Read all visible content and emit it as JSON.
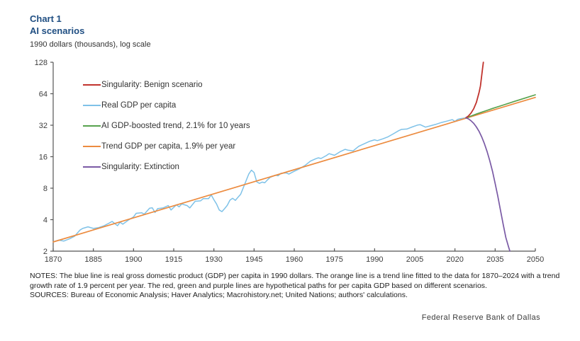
{
  "header": {
    "chart_label": "Chart 1",
    "title": "AI scenarios",
    "subtitle": "1990 dollars (thousands), log scale"
  },
  "chart_data": {
    "type": "line",
    "title": "AI scenarios",
    "ylabel": "1990 dollars (thousands), log scale",
    "xlabel": "",
    "grid": false,
    "legend_position": "inside-top-left",
    "x_axis": {
      "min": 1870,
      "max": 2050,
      "ticks": [
        1870,
        1885,
        1900,
        1915,
        1930,
        1945,
        1960,
        1975,
        1990,
        2005,
        2020,
        2035,
        2050
      ]
    },
    "y_axis": {
      "scale": "log2",
      "min": 2,
      "max": 128,
      "ticks": [
        2,
        4,
        8,
        16,
        32,
        64,
        128
      ]
    },
    "legend": [
      {
        "label": "Singularity: Benign scenario",
        "series": "benign"
      },
      {
        "label": "Real GDP per capita",
        "series": "gdp"
      },
      {
        "label": "AI GDP-boosted trend, 2.1% for 10 years",
        "series": "ai_trend"
      },
      {
        "label": "Trend GDP per capita, 1.9% per year",
        "series": "trend"
      },
      {
        "label": "Singularity: Extinction",
        "series": "extinction"
      }
    ],
    "series": [
      {
        "id": "gdp",
        "name": "Real GDP per capita",
        "color": "#7fc2e8",
        "width": 1.5,
        "points": [
          [
            1870,
            2.45
          ],
          [
            1872,
            2.55
          ],
          [
            1874,
            2.5
          ],
          [
            1876,
            2.62
          ],
          [
            1878,
            2.78
          ],
          [
            1880,
            3.18
          ],
          [
            1881,
            3.3
          ],
          [
            1883,
            3.42
          ],
          [
            1885,
            3.3
          ],
          [
            1887,
            3.36
          ],
          [
            1889,
            3.5
          ],
          [
            1891,
            3.72
          ],
          [
            1892,
            3.85
          ],
          [
            1894,
            3.5
          ],
          [
            1895,
            3.78
          ],
          [
            1896,
            3.62
          ],
          [
            1898,
            3.95
          ],
          [
            1900,
            4.25
          ],
          [
            1901,
            4.6
          ],
          [
            1903,
            4.66
          ],
          [
            1904,
            4.52
          ],
          [
            1906,
            5.15
          ],
          [
            1907,
            5.2
          ],
          [
            1908,
            4.68
          ],
          [
            1909,
            5.1
          ],
          [
            1911,
            5.18
          ],
          [
            1913,
            5.45
          ],
          [
            1914,
            4.95
          ],
          [
            1916,
            5.55
          ],
          [
            1917,
            5.3
          ],
          [
            1918,
            5.65
          ],
          [
            1920,
            5.45
          ],
          [
            1921,
            5.18
          ],
          [
            1923,
            6.0
          ],
          [
            1925,
            6.05
          ],
          [
            1926,
            6.35
          ],
          [
            1928,
            6.35
          ],
          [
            1929,
            6.9
          ],
          [
            1930,
            6.2
          ],
          [
            1931,
            5.65
          ],
          [
            1932,
            4.95
          ],
          [
            1933,
            4.78
          ],
          [
            1934,
            5.1
          ],
          [
            1935,
            5.5
          ],
          [
            1936,
            6.15
          ],
          [
            1937,
            6.4
          ],
          [
            1938,
            6.12
          ],
          [
            1939,
            6.55
          ],
          [
            1940,
            7.0
          ],
          [
            1941,
            8.1
          ],
          [
            1942,
            9.4
          ],
          [
            1943,
            10.9
          ],
          [
            1944,
            11.9
          ],
          [
            1945,
            11.3
          ],
          [
            1946,
            9.2
          ],
          [
            1947,
            8.9
          ],
          [
            1948,
            9.15
          ],
          [
            1949,
            9.0
          ],
          [
            1950,
            9.6
          ],
          [
            1951,
            10.15
          ],
          [
            1953,
            10.65
          ],
          [
            1954,
            10.5
          ],
          [
            1955,
            11.1
          ],
          [
            1957,
            11.2
          ],
          [
            1958,
            10.9
          ],
          [
            1960,
            11.6
          ],
          [
            1962,
            12.3
          ],
          [
            1964,
            13.2
          ],
          [
            1966,
            14.5
          ],
          [
            1968,
            15.3
          ],
          [
            1969,
            15.6
          ],
          [
            1970,
            15.4
          ],
          [
            1972,
            16.4
          ],
          [
            1973,
            17.1
          ],
          [
            1975,
            16.5
          ],
          [
            1977,
            17.8
          ],
          [
            1979,
            18.8
          ],
          [
            1980,
            18.5
          ],
          [
            1982,
            18.2
          ],
          [
            1984,
            20.1
          ],
          [
            1986,
            21.2
          ],
          [
            1988,
            22.4
          ],
          [
            1990,
            23.2
          ],
          [
            1991,
            22.8
          ],
          [
            1993,
            23.7
          ],
          [
            1995,
            24.8
          ],
          [
            1997,
            26.5
          ],
          [
            1999,
            28.4
          ],
          [
            2000,
            29.2
          ],
          [
            2002,
            29.4
          ],
          [
            2004,
            30.8
          ],
          [
            2006,
            32.1
          ],
          [
            2007,
            32.4
          ],
          [
            2009,
            30.7
          ],
          [
            2011,
            31.7
          ],
          [
            2013,
            32.7
          ],
          [
            2015,
            34.0
          ],
          [
            2017,
            35.0
          ],
          [
            2019,
            36.2
          ],
          [
            2020,
            34.8
          ],
          [
            2021,
            36.4
          ],
          [
            2022,
            37.0
          ],
          [
            2024,
            37.6
          ]
        ]
      },
      {
        "id": "trend",
        "name": "Trend GDP per capita, 1.9% per year",
        "color": "#ec8b3f",
        "width": 1.7,
        "points": [
          [
            1870,
            2.45
          ],
          [
            2050,
            59
          ]
        ]
      },
      {
        "id": "ai_trend",
        "name": "AI GDP-boosted trend, 2.1% for 10 years",
        "color": "#57a24d",
        "width": 1.7,
        "points": [
          [
            2024,
            37.6
          ],
          [
            2026,
            39.2
          ],
          [
            2028,
            40.9
          ],
          [
            2030,
            42.6
          ],
          [
            2032,
            44.4
          ],
          [
            2034,
            46.3
          ],
          [
            2038,
            49.9
          ],
          [
            2042,
            53.8
          ],
          [
            2046,
            58.0
          ],
          [
            2050,
            62.5
          ]
        ]
      },
      {
        "id": "benign",
        "name": "Singularity: Benign scenario",
        "color": "#c1332d",
        "width": 1.8,
        "points": [
          [
            2024,
            37.6
          ],
          [
            2025,
            39.2
          ],
          [
            2026,
            41.8
          ],
          [
            2027,
            46
          ],
          [
            2028,
            53
          ],
          [
            2029,
            66
          ],
          [
            2029.5,
            76
          ],
          [
            2030,
            96
          ],
          [
            2030.3,
            112
          ],
          [
            2030.6,
            128
          ]
        ]
      },
      {
        "id": "extinction",
        "name": "Singularity: Extinction",
        "color": "#7a5aa5",
        "width": 1.7,
        "points": [
          [
            2024,
            37.6
          ],
          [
            2025,
            36.8
          ],
          [
            2026,
            35.3
          ],
          [
            2027,
            33.3
          ],
          [
            2028,
            30.8
          ],
          [
            2029,
            27.9
          ],
          [
            2030,
            24.7
          ],
          [
            2031,
            21.3
          ],
          [
            2032,
            17.9
          ],
          [
            2033,
            14.6
          ],
          [
            2034,
            11.6
          ],
          [
            2035,
            8.9
          ],
          [
            2036,
            6.7
          ],
          [
            2037,
            4.9
          ],
          [
            2038,
            3.6
          ],
          [
            2039,
            2.7
          ],
          [
            2040,
            2.2
          ],
          [
            2040.5,
            2.0
          ]
        ]
      }
    ]
  },
  "notes": {
    "notes_text": "NOTES: The blue line is real gross domestic product (GDP) per capita in 1990 dollars. The orange line is a trend line fitted to the data for 1870–2024 with a trend growth rate of 1.9 percent per year. The red, green and purple lines are hypothetical paths for per capita GDP based on different scenarios.",
    "sources_text": "SOURCES: Bureau of Economic Analysis; Haver Analytics; Macrohistory.net; United Nations; authors' calculations."
  },
  "footer": {
    "attribution": "Federal Reserve Bank of Dallas"
  }
}
